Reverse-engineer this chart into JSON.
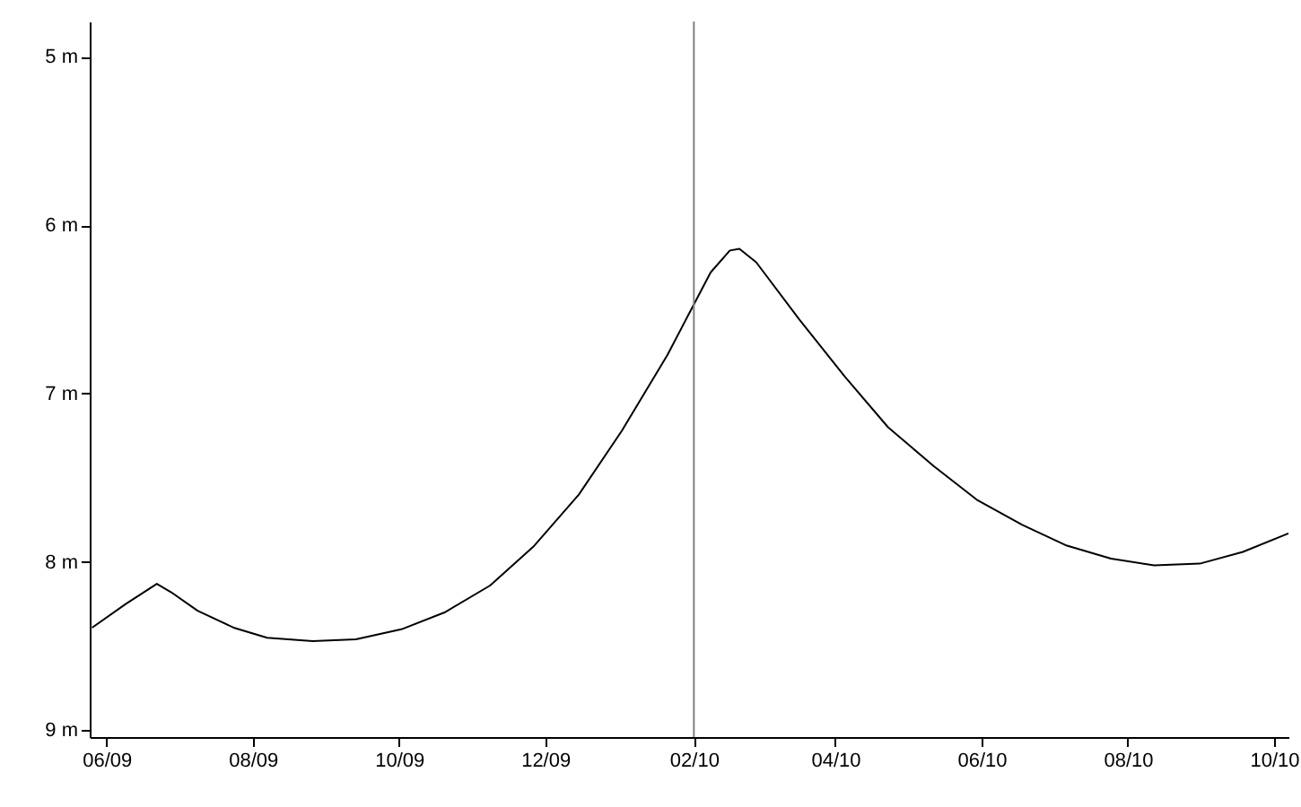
{
  "chart_data": {
    "type": "line",
    "x": [
      "2009-05-26",
      "2009-06-09",
      "2009-06-22",
      "2009-06-28",
      "2009-07-09",
      "2009-07-24",
      "2009-08-07",
      "2009-08-26",
      "2009-09-13",
      "2009-10-02",
      "2009-10-20",
      "2009-11-08",
      "2009-11-26",
      "2009-12-15",
      "2010-01-02",
      "2010-01-21",
      "2010-02-01",
      "2010-02-08",
      "2010-02-16",
      "2010-02-20",
      "2010-02-27",
      "2010-03-17",
      "2010-04-05",
      "2010-04-23",
      "2010-05-12",
      "2010-05-30",
      "2010-06-18",
      "2010-07-06",
      "2010-07-25",
      "2010-08-12",
      "2010-08-31",
      "2010-09-18",
      "2010-10-07"
    ],
    "series": [
      {
        "color": "#000000",
        "values": [
          8.39,
          8.25,
          8.13,
          8.18,
          8.29,
          8.39,
          8.45,
          8.47,
          8.46,
          8.4,
          8.3,
          8.14,
          7.91,
          7.6,
          7.22,
          6.77,
          6.47,
          6.28,
          6.15,
          6.14,
          6.22,
          6.56,
          6.9,
          7.2,
          7.43,
          7.63,
          7.78,
          7.9,
          7.98,
          8.02,
          8.01,
          7.94,
          7.83
        ]
      }
    ],
    "xlim": [
      "2009-05-25",
      "2010-10-07"
    ],
    "xticks": [
      {
        "value": "2009-06-01",
        "label": "06/09"
      },
      {
        "value": "2009-08-01",
        "label": "08/09"
      },
      {
        "value": "2009-10-01",
        "label": "10/09"
      },
      {
        "value": "2009-12-01",
        "label": "12/09"
      },
      {
        "value": "2010-02-01",
        "label": "02/10"
      },
      {
        "value": "2010-04-01",
        "label": "04/10"
      },
      {
        "value": "2010-06-01",
        "label": "06/10"
      },
      {
        "value": "2010-08-01",
        "label": "08/10"
      },
      {
        "value": "2010-10-01",
        "label": "10/10"
      }
    ],
    "ylim": [
      9.04,
      4.79
    ],
    "yticks": [
      {
        "value": 5,
        "label": "5 m"
      },
      {
        "value": 6,
        "label": "6 m"
      },
      {
        "value": 7,
        "label": "7 m"
      },
      {
        "value": 8,
        "label": "8 m"
      },
      {
        "value": 9,
        "label": "9 m"
      }
    ],
    "ref_lines": [
      {
        "axis": "x",
        "value": "2010-02-01",
        "color": "#808080"
      }
    ],
    "grid": false,
    "marker": "none",
    "line_style": "solid"
  }
}
